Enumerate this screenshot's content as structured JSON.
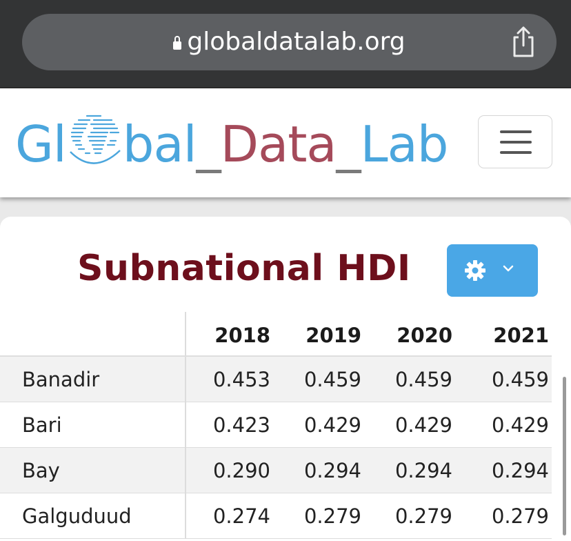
{
  "browser": {
    "url": "globaldatalab.org"
  },
  "logo": {
    "part1": "Gl",
    "part2": "bal",
    "under1": "_",
    "part3": "Data",
    "under2": "_",
    "part4": "Lab"
  },
  "colors": {
    "logo_blue": "#4ba6dd",
    "logo_red": "#a54a5a",
    "title_red": "#6d0f1c",
    "button_blue": "#4aa7e6"
  },
  "page": {
    "title": "Subnational HDI"
  },
  "table": {
    "headers": [
      "",
      "2018",
      "2019",
      "2020",
      "2021"
    ],
    "rows": [
      {
        "region": "Banadir",
        "values": [
          "0.453",
          "0.459",
          "0.459",
          "0.459"
        ]
      },
      {
        "region": "Bari",
        "values": [
          "0.423",
          "0.429",
          "0.429",
          "0.429"
        ]
      },
      {
        "region": "Bay",
        "values": [
          "0.290",
          "0.294",
          "0.294",
          "0.294"
        ]
      },
      {
        "region": "Galguduud",
        "values": [
          "0.274",
          "0.279",
          "0.279",
          "0.279"
        ]
      }
    ]
  },
  "icons": {
    "lock": "lock-icon",
    "share": "share-icon",
    "globe": "globe-icon",
    "menu": "hamburger-menu-icon",
    "gear": "gear-icon",
    "chevron": "chevron-down-icon"
  }
}
